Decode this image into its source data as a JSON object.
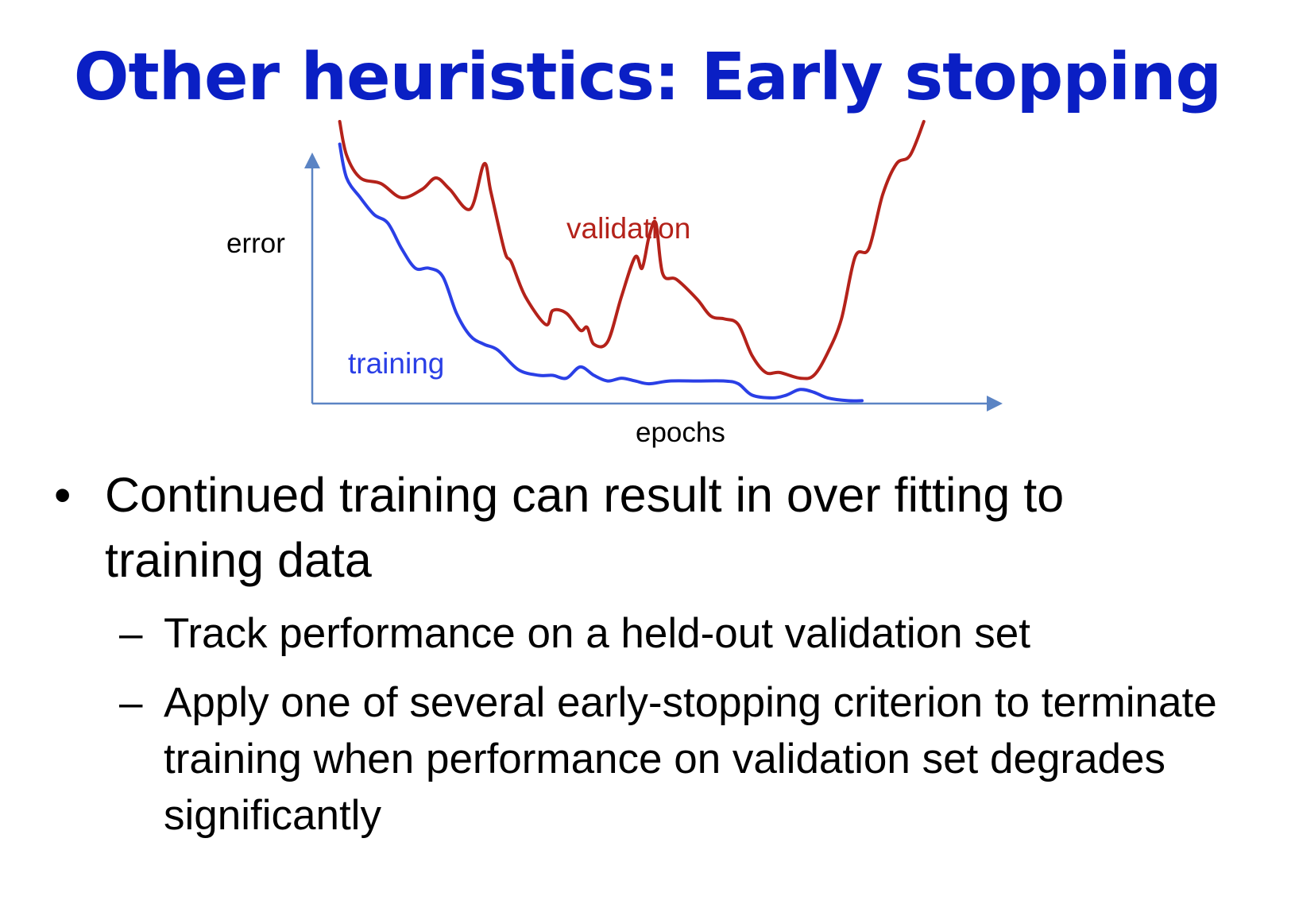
{
  "title": "Other heuristics: Early stopping",
  "colors": {
    "title": "#0a1fc4",
    "validation": "#b4221a",
    "training": "#2a3fe6",
    "axis": "#5b84c4"
  },
  "chart_data": {
    "type": "line",
    "xlabel": "epochs",
    "ylabel": "error",
    "grid": false,
    "xlim": [
      0,
      100
    ],
    "ylim": [
      0,
      100
    ],
    "series": [
      {
        "name": "validation",
        "color": "#b4221a",
        "label_position": "middle-top",
        "points": [
          [
            4,
            100
          ],
          [
            5,
            88
          ],
          [
            7,
            80
          ],
          [
            10,
            78
          ],
          [
            13,
            73
          ],
          [
            16,
            76
          ],
          [
            18,
            80
          ],
          [
            20,
            76
          ],
          [
            23,
            69
          ],
          [
            25,
            85
          ],
          [
            26,
            75
          ],
          [
            28,
            54
          ],
          [
            29,
            50
          ],
          [
            31,
            38
          ],
          [
            34,
            28
          ],
          [
            35,
            33
          ],
          [
            37,
            32
          ],
          [
            39,
            26
          ],
          [
            40,
            27
          ],
          [
            41,
            21
          ],
          [
            43,
            22
          ],
          [
            45,
            38
          ],
          [
            47,
            52
          ],
          [
            48,
            48
          ],
          [
            49,
            59
          ],
          [
            50,
            64
          ],
          [
            51,
            46
          ],
          [
            53,
            44
          ],
          [
            56,
            37
          ],
          [
            58,
            31
          ],
          [
            60,
            30
          ],
          [
            62,
            28
          ],
          [
            64,
            17
          ],
          [
            66,
            11
          ],
          [
            68,
            11
          ],
          [
            71,
            9
          ],
          [
            73,
            10
          ],
          [
            75,
            18
          ],
          [
            77,
            30
          ],
          [
            79,
            52
          ],
          [
            81,
            55
          ],
          [
            83,
            74
          ],
          [
            85,
            85
          ],
          [
            87,
            88
          ],
          [
            89,
            100
          ]
        ]
      },
      {
        "name": "training",
        "color": "#2a3fe6",
        "label_position": "left-bottom",
        "points": [
          [
            4,
            92
          ],
          [
            5,
            80
          ],
          [
            7,
            73
          ],
          [
            9,
            67
          ],
          [
            11,
            64
          ],
          [
            13,
            55
          ],
          [
            15,
            48
          ],
          [
            17,
            48
          ],
          [
            19,
            45
          ],
          [
            21,
            32
          ],
          [
            23,
            24
          ],
          [
            25,
            21
          ],
          [
            27,
            19
          ],
          [
            30,
            12
          ],
          [
            33,
            10
          ],
          [
            35,
            10
          ],
          [
            37,
            9
          ],
          [
            39,
            13
          ],
          [
            41,
            10
          ],
          [
            43,
            8
          ],
          [
            45,
            9
          ],
          [
            47,
            8
          ],
          [
            49,
            7
          ],
          [
            52,
            8
          ],
          [
            56,
            8
          ],
          [
            60,
            8
          ],
          [
            62,
            7
          ],
          [
            64,
            3
          ],
          [
            67,
            2
          ],
          [
            69,
            3
          ],
          [
            71,
            5
          ],
          [
            73,
            4
          ],
          [
            75,
            2
          ],
          [
            78,
            1
          ],
          [
            80,
            1
          ]
        ]
      }
    ]
  },
  "bullets": [
    {
      "text": "Continued training can result in over fitting to training data",
      "sub": [
        "Track performance on a held-out validation set",
        "Apply one of several early-stopping criterion to terminate training when performance on validation set degrades significantly"
      ]
    }
  ],
  "markers": {
    "bullet": "•",
    "dash": "–"
  }
}
